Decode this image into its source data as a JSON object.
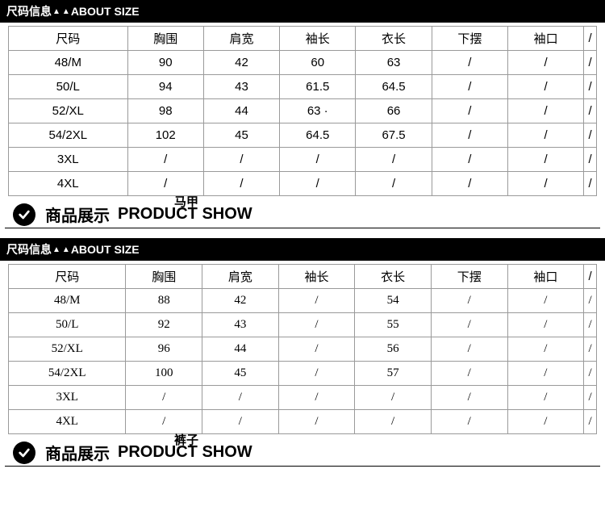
{
  "header1": {
    "prefix": "尺码信息",
    "tri": "▲",
    "suffix": "ABOUT SIZE"
  },
  "table1": {
    "columns": [
      "尺码",
      "胸围",
      "肩宽",
      "袖长",
      "衣长",
      "下摆",
      "袖口",
      "/"
    ],
    "rows": [
      [
        "48/M",
        "90",
        "42",
        "60",
        "63",
        "/",
        "/",
        "/"
      ],
      [
        "50/L",
        "94",
        "43",
        "61.5",
        "64.5",
        "/",
        "/",
        "/"
      ],
      [
        "52/XL",
        "98",
        "44",
        "63 ·",
        "66",
        "/",
        "/",
        "/"
      ],
      [
        "54/2XL",
        "102",
        "45",
        "64.5",
        "67.5",
        "/",
        "/",
        "/"
      ],
      [
        "3XL",
        "/",
        "/",
        "/",
        "/",
        "/",
        "/",
        "/"
      ],
      [
        "4XL",
        "/",
        "/",
        "/",
        "/",
        "/",
        "/",
        "/"
      ]
    ]
  },
  "show1": {
    "subtitle": "马甲",
    "cn": "商品展示",
    "en": "PRODUCT SHOW"
  },
  "header2": {
    "prefix": "尺码信息",
    "tri": "▲",
    "suffix": "ABOUT SIZE"
  },
  "table2": {
    "columns": [
      "尺码",
      "胸围",
      "肩宽",
      "袖长",
      "衣长",
      "下摆",
      "袖口",
      "/"
    ],
    "rows": [
      [
        "48/M",
        "88",
        "42",
        "/",
        "54",
        "/",
        "/",
        "/"
      ],
      [
        "50/L",
        "92",
        "43",
        "/",
        "55",
        "/",
        "/",
        "/"
      ],
      [
        "52/XL",
        "96",
        "44",
        "/",
        "56",
        "/",
        "/",
        "/"
      ],
      [
        "54/2XL",
        "100",
        "45",
        "/",
        "57",
        "/",
        "/",
        "/"
      ],
      [
        "3XL",
        "/",
        "/",
        "/",
        "/",
        "/",
        "/",
        "/"
      ],
      [
        "4XL",
        "/",
        "/",
        "/",
        "/",
        "/",
        "/",
        "/"
      ]
    ]
  },
  "show2": {
    "subtitle": "裤子",
    "cn": "商品展示",
    "en": "PRODUCT SHOW"
  }
}
